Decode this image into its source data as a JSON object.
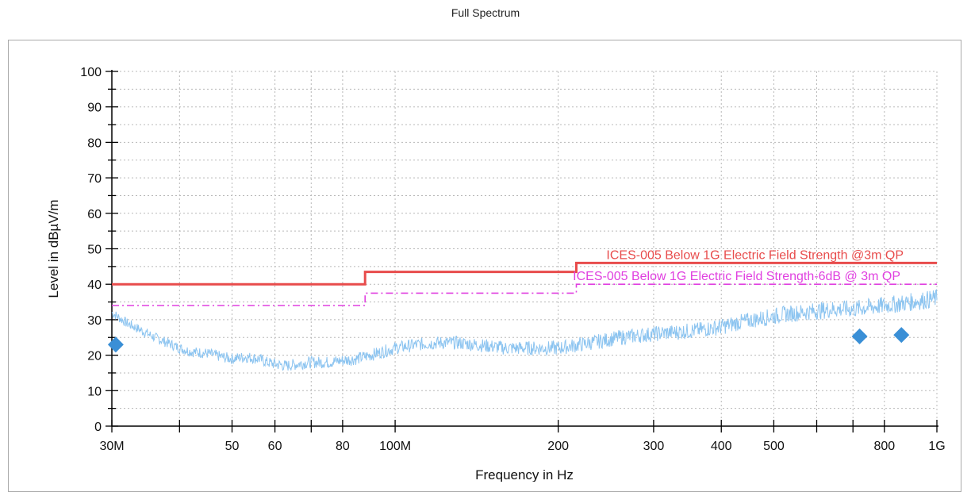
{
  "chart_data": {
    "type": "line",
    "title": "Full Spectrum",
    "xlabel": "Frequency in Hz",
    "ylabel": "Level in dBµV/m",
    "x_scale": "log",
    "xlim_hz": [
      30000000,
      1000000000
    ],
    "ylim": [
      0,
      100
    ],
    "y_ticks": [
      0,
      10,
      20,
      30,
      40,
      50,
      60,
      70,
      80,
      90,
      100
    ],
    "x_ticks": [
      {
        "value": 30000000,
        "label": "30M"
      },
      {
        "value": 40000000,
        "label": ""
      },
      {
        "value": 50000000,
        "label": "50"
      },
      {
        "value": 60000000,
        "label": "60"
      },
      {
        "value": 70000000,
        "label": ""
      },
      {
        "value": 80000000,
        "label": "80"
      },
      {
        "value": 100000000,
        "label": "100M"
      },
      {
        "value": 200000000,
        "label": "200"
      },
      {
        "value": 300000000,
        "label": "300"
      },
      {
        "value": 400000000,
        "label": "400"
      },
      {
        "value": 500000000,
        "label": "500"
      },
      {
        "value": 600000000,
        "label": ""
      },
      {
        "value": 700000000,
        "label": ""
      },
      {
        "value": 800000000,
        "label": "800"
      },
      {
        "value": 1000000000,
        "label": "1G"
      }
    ],
    "grid": true,
    "limit_lines": [
      {
        "label": "ICES-005 Below 1G Electric Field Strength @3m  QP",
        "color": "#e84c4c",
        "style": "solid",
        "steps": [
          {
            "x_start": 30000000,
            "x_end": 88000000,
            "y": 40
          },
          {
            "x_start": 88000000,
            "x_end": 216000000,
            "y": 43.5
          },
          {
            "x_start": 216000000,
            "x_end": 1000000000,
            "y": 46
          }
        ]
      },
      {
        "label": "ICES-005 Below 1G Electric Field Strength-6dB @ 3m  QP",
        "color": "#e040e0",
        "style": "dashdot",
        "steps": [
          {
            "x_start": 30000000,
            "x_end": 88000000,
            "y": 34
          },
          {
            "x_start": 88000000,
            "x_end": 216000000,
            "y": 37.5
          },
          {
            "x_start": 216000000,
            "x_end": 1000000000,
            "y": 40
          }
        ]
      }
    ],
    "series": [
      {
        "color": "#8cc4f0",
        "points": [
          [
            30000000,
            32
          ],
          [
            32000000,
            29
          ],
          [
            34000000,
            27
          ],
          [
            36000000,
            25
          ],
          [
            38000000,
            23.5
          ],
          [
            40000000,
            22
          ],
          [
            42000000,
            21
          ],
          [
            45000000,
            20.5
          ],
          [
            48000000,
            19.5
          ],
          [
            50000000,
            19
          ],
          [
            53000000,
            19.5
          ],
          [
            56000000,
            19
          ],
          [
            58000000,
            18
          ],
          [
            60000000,
            17.5
          ],
          [
            63000000,
            17
          ],
          [
            66000000,
            17.5
          ],
          [
            70000000,
            18
          ],
          [
            75000000,
            18
          ],
          [
            80000000,
            18.5
          ],
          [
            85000000,
            19
          ],
          [
            90000000,
            20
          ],
          [
            95000000,
            21
          ],
          [
            100000000,
            22
          ],
          [
            110000000,
            23
          ],
          [
            120000000,
            23.5
          ],
          [
            130000000,
            23.5
          ],
          [
            140000000,
            23
          ],
          [
            150000000,
            22.5
          ],
          [
            160000000,
            22
          ],
          [
            170000000,
            22
          ],
          [
            180000000,
            22
          ],
          [
            200000000,
            22
          ],
          [
            220000000,
            23
          ],
          [
            240000000,
            24
          ],
          [
            260000000,
            25
          ],
          [
            280000000,
            25.5
          ],
          [
            300000000,
            26
          ],
          [
            330000000,
            26.5
          ],
          [
            360000000,
            27
          ],
          [
            400000000,
            28
          ],
          [
            440000000,
            29.5
          ],
          [
            480000000,
            30.5
          ],
          [
            520000000,
            31.5
          ],
          [
            560000000,
            32
          ],
          [
            600000000,
            32.5
          ],
          [
            650000000,
            33
          ],
          [
            700000000,
            33
          ],
          [
            750000000,
            33.5
          ],
          [
            800000000,
            34
          ],
          [
            850000000,
            34.5
          ],
          [
            900000000,
            35
          ],
          [
            950000000,
            35.5
          ],
          [
            1000000000,
            36
          ]
        ]
      }
    ],
    "markers": [
      {
        "x": 30500000,
        "y": 23,
        "color": "#3a8fd6"
      },
      {
        "x": 720000000,
        "y": 25.3,
        "color": "#3a8fd6"
      },
      {
        "x": 860000000,
        "y": 25.7,
        "color": "#3a8fd6"
      }
    ]
  }
}
